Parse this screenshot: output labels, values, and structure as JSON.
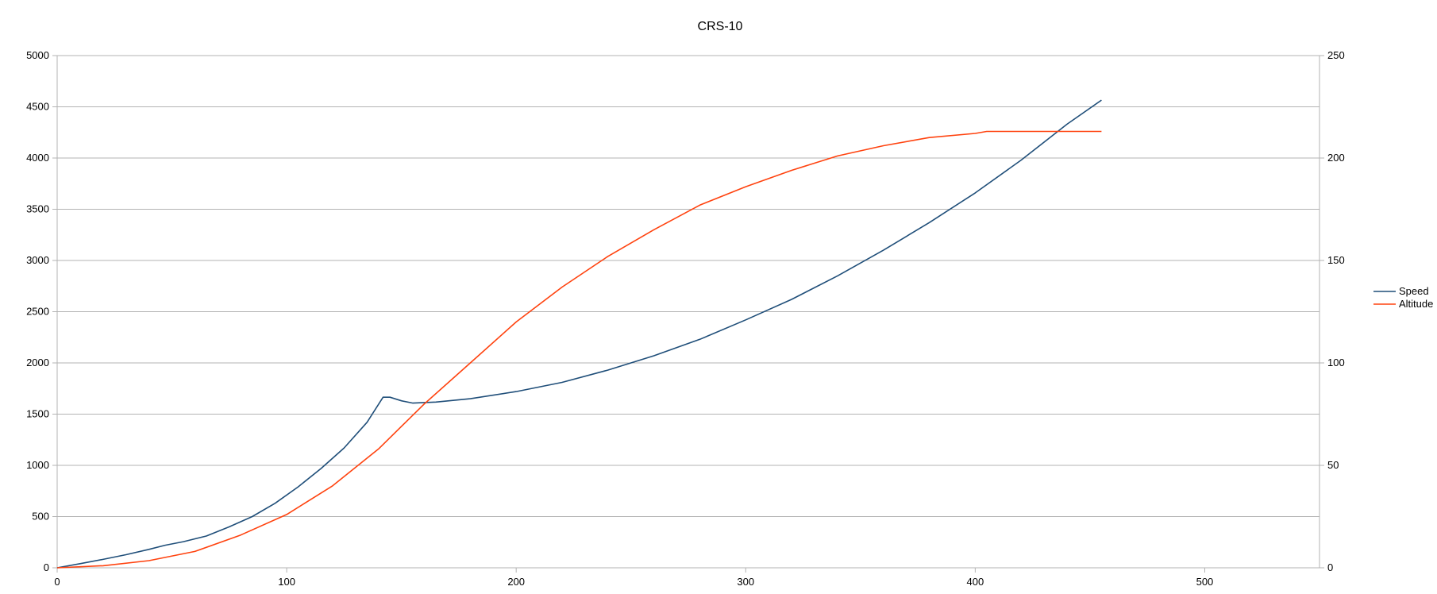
{
  "chart_data": {
    "type": "line",
    "title": "CRS-10",
    "xlabel": "",
    "ylabel": "",
    "y2label": "",
    "xlim": [
      0,
      550
    ],
    "ylim": [
      0,
      5000
    ],
    "y2lim": [
      0,
      250
    ],
    "x_ticks": [
      0,
      100,
      200,
      300,
      400,
      500
    ],
    "y_ticks": [
      0,
      500,
      1000,
      1500,
      2000,
      2500,
      3000,
      3500,
      4000,
      4500,
      5000
    ],
    "y2_ticks": [
      0,
      50,
      100,
      150,
      200,
      250
    ],
    "grid": "horizontal",
    "legend_position": "right",
    "series": [
      {
        "name": "Speed",
        "axis": "left",
        "color": "#1f4e79",
        "points": [
          [
            0,
            0
          ],
          [
            10,
            40
          ],
          [
            20,
            82
          ],
          [
            30,
            128
          ],
          [
            40,
            180
          ],
          [
            47,
            220
          ],
          [
            55,
            255
          ],
          [
            65,
            310
          ],
          [
            75,
            400
          ],
          [
            85,
            500
          ],
          [
            95,
            630
          ],
          [
            105,
            790
          ],
          [
            115,
            970
          ],
          [
            125,
            1170
          ],
          [
            135,
            1420
          ],
          [
            142,
            1665
          ],
          [
            145,
            1665
          ],
          [
            150,
            1630
          ],
          [
            155,
            1608
          ],
          [
            165,
            1618
          ],
          [
            180,
            1650
          ],
          [
            200,
            1720
          ],
          [
            220,
            1810
          ],
          [
            240,
            1930
          ],
          [
            260,
            2070
          ],
          [
            280,
            2230
          ],
          [
            300,
            2420
          ],
          [
            320,
            2620
          ],
          [
            340,
            2850
          ],
          [
            360,
            3100
          ],
          [
            380,
            3370
          ],
          [
            400,
            3660
          ],
          [
            420,
            3980
          ],
          [
            440,
            4330
          ],
          [
            455,
            4565
          ]
        ]
      },
      {
        "name": "Altitude",
        "axis": "right",
        "color": "#ff420e",
        "points": [
          [
            0,
            0
          ],
          [
            20,
            1
          ],
          [
            40,
            3.5
          ],
          [
            60,
            8
          ],
          [
            80,
            16
          ],
          [
            100,
            26
          ],
          [
            120,
            40
          ],
          [
            140,
            58
          ],
          [
            160,
            80
          ],
          [
            180,
            100
          ],
          [
            200,
            120
          ],
          [
            220,
            137
          ],
          [
            240,
            152
          ],
          [
            260,
            165
          ],
          [
            280,
            177
          ],
          [
            300,
            186
          ],
          [
            320,
            194
          ],
          [
            340,
            201
          ],
          [
            360,
            206
          ],
          [
            380,
            210
          ],
          [
            400,
            212
          ],
          [
            405,
            213
          ],
          [
            430,
            213
          ],
          [
            455,
            213
          ]
        ]
      }
    ]
  }
}
